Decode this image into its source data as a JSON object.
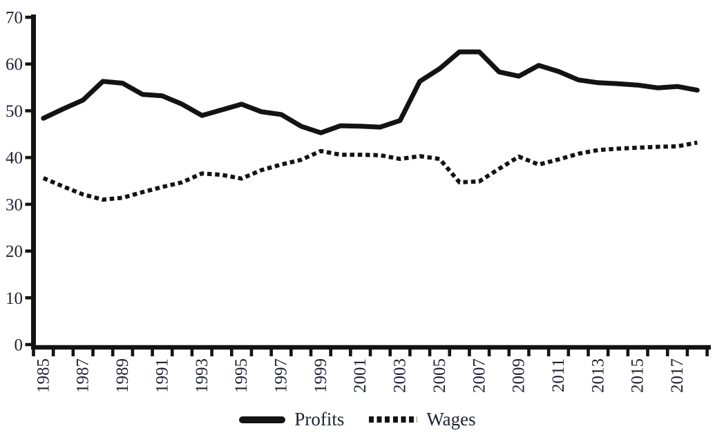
{
  "figure": {
    "background_color": "#ffffff",
    "line_color": "#131313",
    "text_color": "#1e2230"
  },
  "chart_data": {
    "type": "line",
    "title": "",
    "xlabel": "",
    "ylabel": "",
    "x": [
      1985,
      1986,
      1987,
      1988,
      1989,
      1990,
      1991,
      1992,
      1993,
      1994,
      1995,
      1996,
      1997,
      1998,
      1999,
      2000,
      2001,
      2002,
      2003,
      2004,
      2005,
      2006,
      2007,
      2008,
      2009,
      2010,
      2011,
      2012,
      2013,
      2014,
      2015,
      2016,
      2017,
      2018
    ],
    "series": [
      {
        "name": "Profits",
        "line_style": "solid",
        "line_width": 7,
        "values": [
          48.4,
          50.4,
          52.3,
          56.3,
          55.9,
          53.5,
          53.2,
          51.4,
          49.0,
          50.2,
          51.4,
          49.8,
          49.2,
          46.7,
          45.3,
          46.8,
          46.7,
          46.5,
          47.9,
          56.3,
          59.0,
          62.6,
          62.6,
          58.3,
          57.4,
          59.7,
          58.4,
          56.6,
          56.0,
          55.8,
          55.5,
          54.9,
          55.2,
          54.4
        ]
      },
      {
        "name": "Wages",
        "line_style": "dotted",
        "line_width": 6,
        "values": [
          35.6,
          33.8,
          32.1,
          31.0,
          31.4,
          32.6,
          33.7,
          34.7,
          36.6,
          36.3,
          35.5,
          37.3,
          38.5,
          39.5,
          41.4,
          40.6,
          40.6,
          40.5,
          39.7,
          40.3,
          39.7,
          34.7,
          34.9,
          37.6,
          40.2,
          38.5,
          39.6,
          40.8,
          41.6,
          41.9,
          42.1,
          42.3,
          42.4,
          43.2
        ]
      }
    ],
    "ylim": [
      0,
      70
    ],
    "yticks": [
      0,
      10,
      20,
      30,
      40,
      50,
      60,
      70
    ],
    "xtick_labels": [
      "1985",
      "1987",
      "1989",
      "1991",
      "1993",
      "1995",
      "1997",
      "1999",
      "2001",
      "2003",
      "2005",
      "2007",
      "2009",
      "2011",
      "2013",
      "2015",
      "2017"
    ],
    "x_tick_mode": "boundary-ticks-every-year",
    "grid": false,
    "legend_position": "bottom-center"
  },
  "legend": {
    "items": [
      {
        "label": "Profits",
        "swatch": "solid-line"
      },
      {
        "label": "Wages",
        "swatch": "dotted-line"
      }
    ]
  }
}
